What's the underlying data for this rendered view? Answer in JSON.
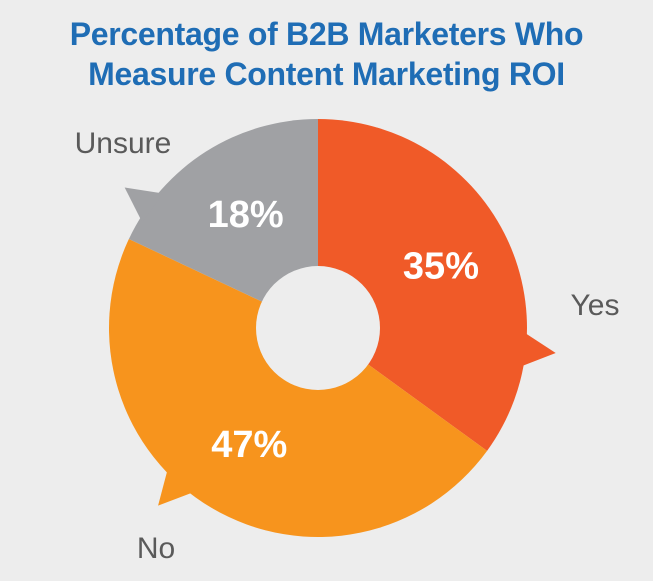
{
  "colors": {
    "title": "#1f6db5",
    "yes": "#f05a28",
    "no": "#f7941d",
    "unsure": "#a0a1a4",
    "hole": "#ededed",
    "label_text": "#5a5a5a"
  },
  "chart_data": {
    "type": "pie",
    "title_lines": [
      "Percentage of B2B Marketers Who",
      "Measure Content Marketing ROI"
    ],
    "slices": [
      {
        "label": "Yes",
        "value": 35,
        "value_label": "35%",
        "color": "#f05a28"
      },
      {
        "label": "No",
        "value": 47,
        "value_label": "47%",
        "color": "#f7941d"
      },
      {
        "label": "Unsure",
        "value": 18,
        "value_label": "18%",
        "color": "#a0a1a4"
      }
    ],
    "donut": true,
    "legend": "none"
  }
}
